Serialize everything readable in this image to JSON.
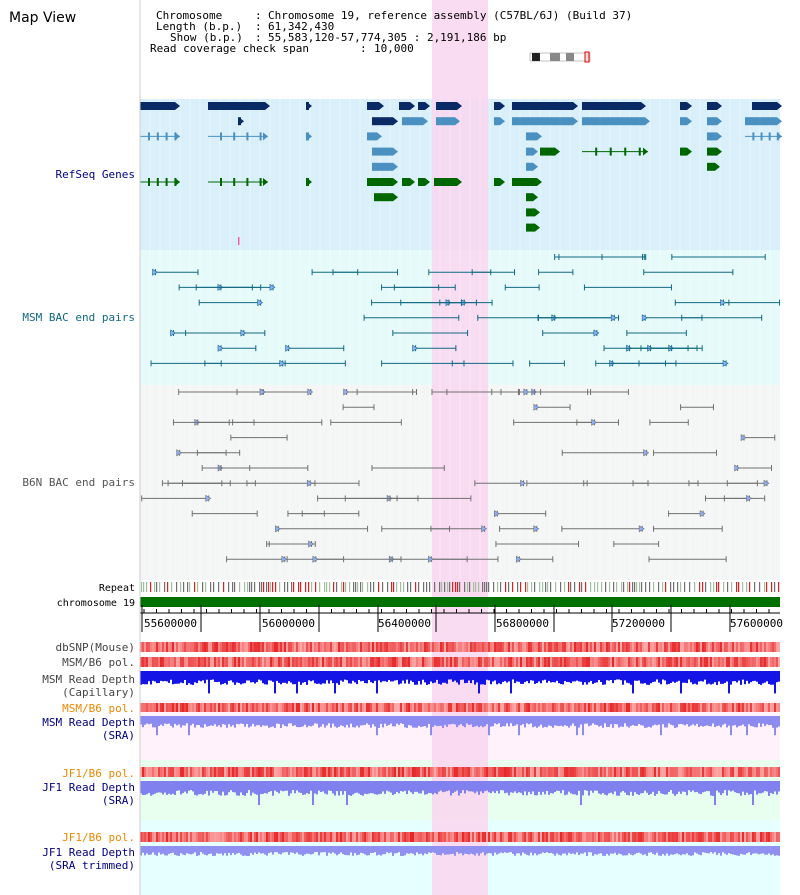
{
  "map_title": "Map View",
  "info": {
    "chromosome_label": "Chromosome",
    "chromosome_value": "Chromosome 19, reference assembly (C57BL/6J) (Build 37)",
    "length_label": "Length (b.p.)",
    "length_value": "61,342,430",
    "show_label": "Show (b.p.)",
    "show_value": "55,583,120-57,774,305 : 2,191,186 bp",
    "coverage_label": "Read coverage check span",
    "coverage_value": "10,000"
  },
  "tracks": {
    "refseq": "RefSeq Genes",
    "msm_bac": "MSM BAC end pairs",
    "b6n_bac": "B6N BAC end pairs",
    "repeat": "Repeat",
    "chromosome": "chromosome 19",
    "dbsnp": "dbSNP(Mouse)",
    "msm_b6_pol_1": "MSM/B6 pol.",
    "msm_depth_cap_1": "MSM Read Depth",
    "msm_depth_cap_2": "(Capillary)",
    "msm_b6_pol_2": "MSM/B6 pol.",
    "msm_depth_sra_1": "MSM Read Depth",
    "msm_depth_sra_2": "(SRA)",
    "jf1_b6_pol_1": "JF1/B6 pol.",
    "jf1_depth_sra_1": "JF1 Read Depth",
    "jf1_depth_sra_2": "(SRA)",
    "jf1_b6_pol_2": "JF1/B6 pol.",
    "jf1_depth_trim_1": "JF1 Read Depth",
    "jf1_depth_trim_2": "(SRA trimmed)"
  },
  "axis": {
    "ticks": [
      "55600000",
      "56000000",
      "56400000",
      "56800000",
      "57200000",
      "57600000"
    ]
  },
  "colors": {
    "highlight": "#f9d6f0",
    "refseq_bg": "#d9f0fa",
    "gene_dark": "#0a2a66",
    "gene_mid": "#4a90c0",
    "gene_green": "#006600",
    "msm_bg": "#e6fafa",
    "msm_line": "#106a82",
    "b6n_bg": "#f4f6f6",
    "b6n_line": "#707070",
    "chromosome": "#007000",
    "pol_red": "#f03030",
    "depth_blue": "#1010e0",
    "depth_light": "#8888f0",
    "label_navy": "#000080",
    "label_orange": "#ee8800"
  }
}
